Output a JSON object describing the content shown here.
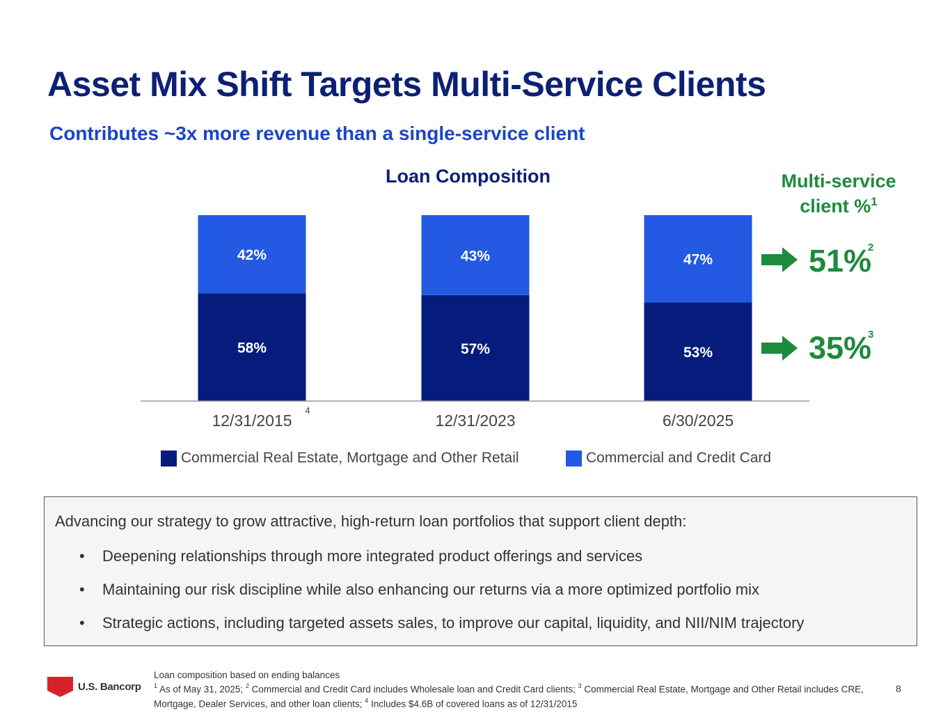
{
  "header": {
    "title": "Asset Mix Shift Targets Multi-Service Clients",
    "subtitle": "Contributes ~3x more revenue than a single-service client"
  },
  "colors": {
    "dark_navy": "#051c7c",
    "bright_blue": "#2459e3",
    "green": "#1e8a3c",
    "title_navy": "#0c2074"
  },
  "chart_data": {
    "type": "bar",
    "stacked": true,
    "title": "Loan Composition",
    "categories": [
      "12/31/2015",
      "12/31/2023",
      "6/30/2025"
    ],
    "category_footnotes": [
      "4",
      "",
      ""
    ],
    "series": [
      {
        "name": "Commercial Real Estate, Mortgage and Other Retail",
        "values": [
          58,
          57,
          53
        ],
        "labels": [
          "58%",
          "57%",
          "53%"
        ],
        "color": "#051c7c"
      },
      {
        "name": "Commercial and Credit Card",
        "values": [
          42,
          43,
          47
        ],
        "labels": [
          "42%",
          "43%",
          "47%"
        ],
        "color": "#2459e3"
      }
    ],
    "ylim": [
      0,
      100
    ],
    "grid": false,
    "legend_position": "bottom"
  },
  "multi_service": {
    "title_line1": "Multi-service",
    "title_line2": "client %",
    "title_footnote": "1",
    "values": [
      {
        "value": "51%",
        "footnote": "2",
        "icon": "right-arrow-icon"
      },
      {
        "value": "35%",
        "footnote": "3",
        "icon": "right-arrow-icon"
      }
    ]
  },
  "strategy_box": {
    "lead": "Advancing our strategy to grow attractive, high-return loan portfolios that support client depth:",
    "bullets": [
      "Deepening relationships through more integrated product offerings and services",
      "Maintaining our risk discipline while also enhancing our returns via a more optimized portfolio mix",
      "Strategic actions, including targeted assets sales, to improve our capital, liquidity, and NII/NIM trajectory"
    ]
  },
  "footer": {
    "logo_text": "U.S. Bancorp",
    "notes_line0": "Loan composition based on ending balances",
    "fn1": "1",
    "fn1_text": "As of May 31,  2025;",
    "fn2": "2",
    "fn2_text": "Commercial and Credit Card includes Wholesale loan and Credit Card clients;",
    "fn3": "3",
    "fn3_text": "Commercial Real Estate, Mortgage and Other Retail includes CRE, Mortgage, Dealer Services, and other loan clients;",
    "fn4": "4",
    "fn4_text": "Includes $4.6B of covered loans as of 12/31/2015",
    "page_number": "8"
  }
}
